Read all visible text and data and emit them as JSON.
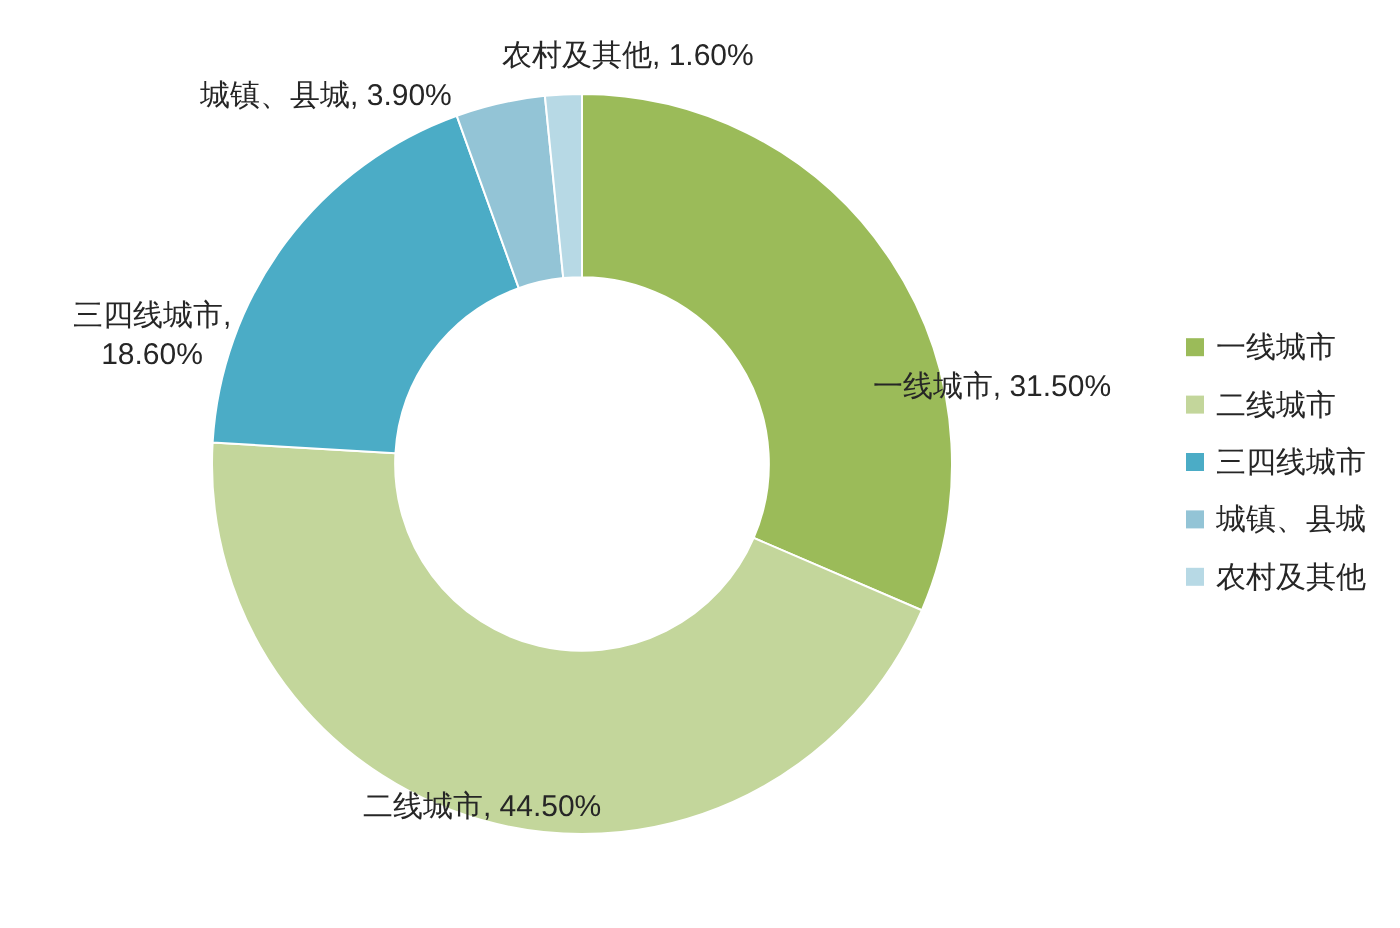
{
  "chart_data": {
    "type": "donut",
    "categories": [
      "一线城市",
      "二线城市",
      "三四线城市",
      "城镇、县城",
      "农村及其他"
    ],
    "values": [
      31.5,
      44.5,
      18.6,
      3.9,
      1.6
    ],
    "colors": [
      "#9bbb59",
      "#c3d69b",
      "#4bacc6",
      "#93c4d6",
      "#b7d9e5"
    ],
    "value_labels": [
      "一线城市, 31.50%",
      "二线城市, 44.50%",
      "三四线城市,\n18.60%",
      "城镇、县城, 3.90%",
      "农村及其他, 1.60%"
    ],
    "legend": "right"
  }
}
